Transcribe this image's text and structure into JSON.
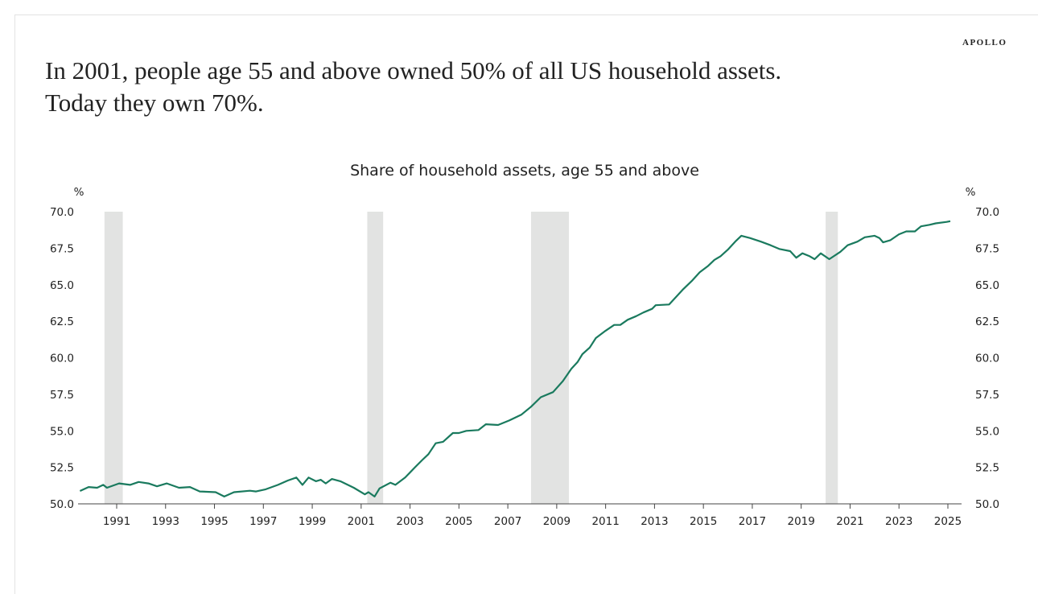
{
  "brand": "APOLLO",
  "headline": {
    "line1": "In 2001, people age 55 and above owned 50% of all US household assets.",
    "line2": "Today they own 70%."
  },
  "colors": {
    "line": "#1a7a5e",
    "recession": "#e2e3e2"
  },
  "chart_data": {
    "type": "line",
    "title": "Share of household assets, age 55 and above",
    "ylabel_left": "%",
    "ylabel_right": "%",
    "xlabel": "",
    "xlim": [
      1989.42,
      2025.56
    ],
    "ylim": [
      50,
      70
    ],
    "yticks": [
      "50.0",
      "52.5",
      "55.0",
      "57.5",
      "60.0",
      "62.5",
      "65.0",
      "67.5",
      "70.0"
    ],
    "xticks": [
      "1991",
      "1993",
      "1995",
      "1997",
      "1999",
      "2001",
      "2003",
      "2005",
      "2007",
      "2009",
      "2011",
      "2013",
      "2015",
      "2017",
      "2019",
      "2021",
      "2023",
      "2025"
    ],
    "grid": false,
    "recessions": [
      [
        1990.5,
        1991.25
      ],
      [
        2001.25,
        2001.9
      ],
      [
        2007.95,
        2009.5
      ],
      [
        2020.0,
        2020.5
      ]
    ],
    "series": [
      {
        "name": "Share of household assets, age 55 and above",
        "points": [
          [
            1989.5,
            50.88
          ],
          [
            1989.85,
            51.15
          ],
          [
            1990.2,
            51.1
          ],
          [
            1990.45,
            51.3
          ],
          [
            1990.6,
            51.1
          ],
          [
            1991.1,
            51.4
          ],
          [
            1991.55,
            51.3
          ],
          [
            1991.9,
            51.5
          ],
          [
            1992.3,
            51.4
          ],
          [
            1992.65,
            51.2
          ],
          [
            1993.05,
            51.4
          ],
          [
            1993.55,
            51.1
          ],
          [
            1994.0,
            51.15
          ],
          [
            1994.4,
            50.85
          ],
          [
            1995.05,
            50.8
          ],
          [
            1995.4,
            50.5
          ],
          [
            1995.8,
            50.8
          ],
          [
            1996.45,
            50.9
          ],
          [
            1996.7,
            50.85
          ],
          [
            1997.1,
            51.0
          ],
          [
            1997.6,
            51.3
          ],
          [
            1998.0,
            51.6
          ],
          [
            1998.35,
            51.8
          ],
          [
            1998.6,
            51.3
          ],
          [
            1998.85,
            51.8
          ],
          [
            1999.15,
            51.55
          ],
          [
            1999.35,
            51.65
          ],
          [
            1999.55,
            51.4
          ],
          [
            1999.8,
            51.7
          ],
          [
            2000.15,
            51.55
          ],
          [
            2000.7,
            51.1
          ],
          [
            2001.15,
            50.65
          ],
          [
            2001.3,
            50.8
          ],
          [
            2001.55,
            50.5
          ],
          [
            2001.75,
            51.05
          ],
          [
            2002.2,
            51.45
          ],
          [
            2002.4,
            51.3
          ],
          [
            2002.8,
            51.8
          ],
          [
            2003.2,
            52.5
          ],
          [
            2003.5,
            53.0
          ],
          [
            2003.75,
            53.4
          ],
          [
            2004.05,
            54.15
          ],
          [
            2004.35,
            54.25
          ],
          [
            2004.75,
            54.85
          ],
          [
            2005.0,
            54.85
          ],
          [
            2005.3,
            55.0
          ],
          [
            2005.8,
            55.05
          ],
          [
            2006.1,
            55.45
          ],
          [
            2006.6,
            55.4
          ],
          [
            2007.05,
            55.7
          ],
          [
            2007.55,
            56.1
          ],
          [
            2007.95,
            56.65
          ],
          [
            2008.35,
            57.3
          ],
          [
            2008.85,
            57.65
          ],
          [
            2009.25,
            58.4
          ],
          [
            2009.6,
            59.25
          ],
          [
            2009.85,
            59.7
          ],
          [
            2010.05,
            60.25
          ],
          [
            2010.35,
            60.7
          ],
          [
            2010.6,
            61.35
          ],
          [
            2011.0,
            61.85
          ],
          [
            2011.35,
            62.25
          ],
          [
            2011.6,
            62.25
          ],
          [
            2011.9,
            62.6
          ],
          [
            2012.25,
            62.85
          ],
          [
            2012.55,
            63.1
          ],
          [
            2012.9,
            63.35
          ],
          [
            2013.05,
            63.6
          ],
          [
            2013.6,
            63.65
          ],
          [
            2014.15,
            64.65
          ],
          [
            2014.55,
            65.3
          ],
          [
            2014.85,
            65.85
          ],
          [
            2015.2,
            66.3
          ],
          [
            2015.45,
            66.7
          ],
          [
            2015.7,
            66.95
          ],
          [
            2016.0,
            67.4
          ],
          [
            2016.3,
            67.95
          ],
          [
            2016.55,
            68.35
          ],
          [
            2016.9,
            68.2
          ],
          [
            2017.35,
            67.95
          ],
          [
            2017.75,
            67.7
          ],
          [
            2018.1,
            67.45
          ],
          [
            2018.55,
            67.3
          ],
          [
            2018.8,
            66.85
          ],
          [
            2019.05,
            67.15
          ],
          [
            2019.35,
            66.95
          ],
          [
            2019.55,
            66.75
          ],
          [
            2019.8,
            67.15
          ],
          [
            2020.15,
            66.75
          ],
          [
            2020.6,
            67.25
          ],
          [
            2020.9,
            67.7
          ],
          [
            2021.3,
            67.95
          ],
          [
            2021.6,
            68.25
          ],
          [
            2022.0,
            68.35
          ],
          [
            2022.2,
            68.2
          ],
          [
            2022.35,
            67.9
          ],
          [
            2022.65,
            68.05
          ],
          [
            2023.0,
            68.45
          ],
          [
            2023.3,
            68.65
          ],
          [
            2023.65,
            68.65
          ],
          [
            2023.9,
            69.0
          ],
          [
            2024.25,
            69.1
          ],
          [
            2024.5,
            69.2
          ],
          [
            2024.95,
            69.3
          ],
          [
            2025.1,
            69.35
          ]
        ]
      }
    ]
  }
}
